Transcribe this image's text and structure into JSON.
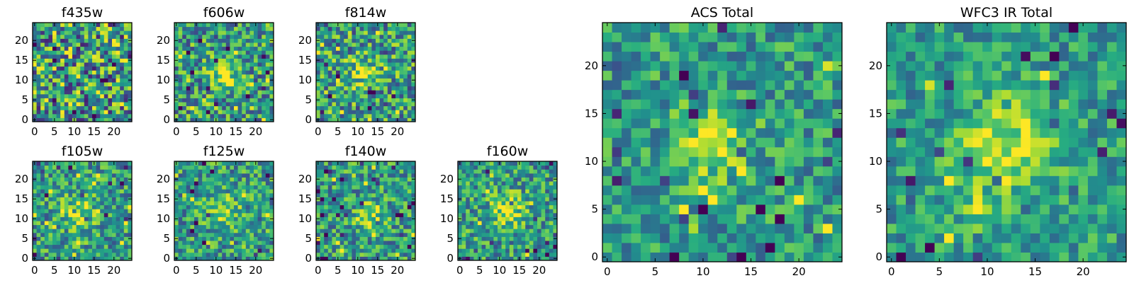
{
  "figure": {
    "colormap": "viridis"
  },
  "chart_data": [
    {
      "type": "heatmap",
      "title": "f435w",
      "grid": false,
      "xlim": [
        0,
        24
      ],
      "ylim": [
        0,
        24
      ],
      "xticks": [
        "0",
        "5",
        "10",
        "15",
        "20"
      ],
      "yticks": [
        "0",
        "5",
        "10",
        "15",
        "20"
      ],
      "hotspots": [],
      "noise": 0.9,
      "seed": 11
    },
    {
      "type": "heatmap",
      "title": "f606w",
      "grid": false,
      "xlim": [
        0,
        24
      ],
      "ylim": [
        0,
        24
      ],
      "xticks": [
        "0",
        "5",
        "10",
        "15",
        "20"
      ],
      "yticks": [
        "0",
        "5",
        "10",
        "15",
        "20"
      ],
      "hotspots": [
        {
          "x": 12,
          "y": 12,
          "s": 2.5,
          "a": 0.35
        }
      ],
      "noise": 0.7,
      "seed": 23
    },
    {
      "type": "heatmap",
      "title": "f814w",
      "grid": false,
      "xlim": [
        0,
        24
      ],
      "ylim": [
        0,
        24
      ],
      "xticks": [
        "0",
        "5",
        "10",
        "15",
        "20"
      ],
      "yticks": [
        "0",
        "5",
        "10",
        "15",
        "20"
      ],
      "hotspots": [
        {
          "x": 11,
          "y": 12,
          "s": 2.5,
          "a": 0.35
        }
      ],
      "noise": 0.75,
      "seed": 37
    },
    {
      "type": "heatmap",
      "title": "f105w",
      "grid": false,
      "xlim": [
        0,
        24
      ],
      "ylim": [
        0,
        24
      ],
      "xticks": [
        "0",
        "5",
        "10",
        "15",
        "20"
      ],
      "yticks": [
        "0",
        "5",
        "10",
        "15",
        "20"
      ],
      "hotspots": [
        {
          "x": 11,
          "y": 12,
          "s": 3,
          "a": 0.3
        }
      ],
      "noise": 0.6,
      "seed": 41
    },
    {
      "type": "heatmap",
      "title": "f125w",
      "grid": false,
      "xlim": [
        0,
        24
      ],
      "ylim": [
        0,
        24
      ],
      "xticks": [
        "0",
        "5",
        "10",
        "15",
        "20"
      ],
      "yticks": [
        "0",
        "5",
        "10",
        "15",
        "20"
      ],
      "hotspots": [
        {
          "x": 12,
          "y": 12,
          "s": 3,
          "a": 0.25
        }
      ],
      "noise": 0.6,
      "seed": 53
    },
    {
      "type": "heatmap",
      "title": "f140w",
      "grid": false,
      "xlim": [
        0,
        24
      ],
      "ylim": [
        0,
        24
      ],
      "xticks": [
        "0",
        "5",
        "10",
        "15",
        "20"
      ],
      "yticks": [
        "0",
        "5",
        "10",
        "15",
        "20"
      ],
      "hotspots": [
        {
          "x": 13,
          "y": 11,
          "s": 2.5,
          "a": 0.35
        }
      ],
      "noise": 0.6,
      "seed": 67
    },
    {
      "type": "heatmap",
      "title": "f160w",
      "grid": false,
      "xlim": [
        0,
        24
      ],
      "ylim": [
        0,
        24
      ],
      "xticks": [
        "0",
        "5",
        "10",
        "15",
        "20"
      ],
      "yticks": [
        "0",
        "5",
        "10",
        "15",
        "20"
      ],
      "hotspots": [
        {
          "x": 12,
          "y": 12,
          "s": 3,
          "a": 0.35
        }
      ],
      "noise": 0.6,
      "seed": 79
    },
    {
      "type": "heatmap",
      "title": "ACS Total",
      "grid": false,
      "xlim": [
        0,
        24
      ],
      "ylim": [
        0,
        24
      ],
      "xticks": [
        "0",
        "5",
        "10",
        "15",
        "20"
      ],
      "yticks": [
        "0",
        "5",
        "10",
        "15",
        "20"
      ],
      "hotspots": [
        {
          "x": 11,
          "y": 12,
          "s": 2.5,
          "a": 0.4
        }
      ],
      "noise": 0.5,
      "seed": 83
    },
    {
      "type": "heatmap",
      "title": "WFC3 IR Total",
      "grid": false,
      "xlim": [
        0,
        24
      ],
      "ylim": [
        0,
        24
      ],
      "xticks": [
        "0",
        "5",
        "10",
        "15",
        "20"
      ],
      "yticks": [
        "0",
        "5",
        "10",
        "15",
        "20"
      ],
      "hotspots": [
        {
          "x": 12,
          "y": 12,
          "s": 3.5,
          "a": 0.35
        },
        {
          "x": 9,
          "y": 5,
          "s": 1.2,
          "a": 0.3
        }
      ],
      "noise": 0.45,
      "seed": 97
    }
  ]
}
